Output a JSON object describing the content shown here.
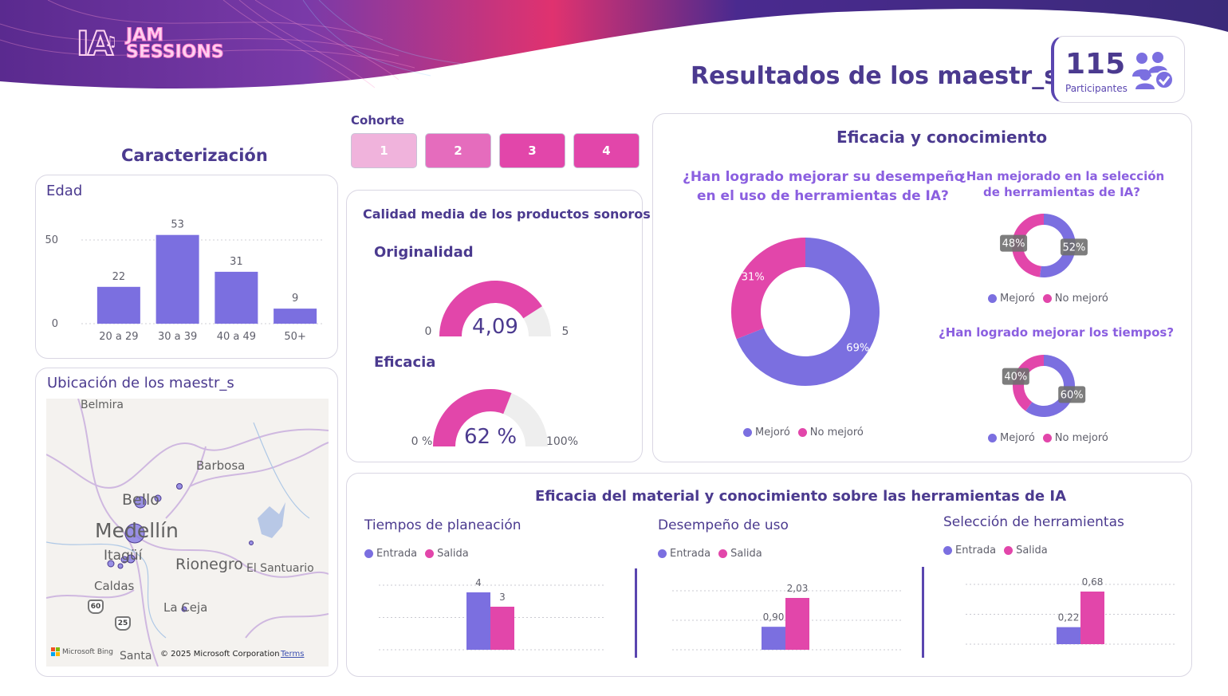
{
  "brand": {
    "logo_line1": "JAM",
    "logo_line2": "SESSIONS",
    "logo_mark": "IA"
  },
  "header": {
    "title": "Resultados de los maestr_s"
  },
  "kpi": {
    "value": "115",
    "label": "Participantes",
    "icon": "people-check-icon"
  },
  "colors": {
    "purple": "#7b6fe0",
    "pink": "#e246aa",
    "title": "#4b3a8f",
    "track": "#eeeeee"
  },
  "cohorte": {
    "label": "Cohorte",
    "buttons": [
      {
        "label": "1",
        "color": "#f0b3dc"
      },
      {
        "label": "2",
        "color": "#e56cbd"
      },
      {
        "label": "3",
        "color": "#e246aa"
      },
      {
        "label": "4",
        "color": "#e246aa"
      }
    ]
  },
  "caracterizacion": {
    "title": "Caracterización"
  },
  "edad": {
    "title": "Edad",
    "chart_data": {
      "type": "bar",
      "categories": [
        "20 a 29",
        "30 a 39",
        "40 a 49",
        "50+"
      ],
      "values": [
        22,
        53,
        31,
        9
      ],
      "yticks": [
        "0",
        "50"
      ],
      "ylim": [
        0,
        55
      ],
      "data_labels": [
        "22",
        "53",
        "31",
        "9"
      ],
      "color": "#7b6fe0"
    }
  },
  "mapa": {
    "title": "Ubicación de los maestr_s",
    "places": [
      "Belmira",
      "Barbosa",
      "Bello",
      "Medellín",
      "Itagüí",
      "Rionegro",
      "El Santuario",
      "Caldas",
      "La Ceja",
      "Santa"
    ],
    "shields": [
      "60",
      "25"
    ],
    "attribution": {
      "bing": "Microsoft Bing",
      "copyright": "© 2025 Microsoft Corporation",
      "terms": "Terms"
    }
  },
  "calidad": {
    "title": "Calidad media de los productos sonoros",
    "gauges": [
      {
        "title": "Originalidad",
        "value": 4.09,
        "min": 0,
        "max": 5,
        "value_label": "4,09",
        "min_label": "0",
        "max_label": "5"
      },
      {
        "title": "Eficacia",
        "value": 62,
        "min": 0,
        "max": 100,
        "value_label": "62 %",
        "min_label": "0 %",
        "max_label": "100%"
      }
    ]
  },
  "eficacia": {
    "title": "Eficacia y conocimiento",
    "legend": [
      "Mejoró",
      "No mejoró"
    ],
    "donuts": [
      {
        "question_lines": [
          "¿Han logrado mejorar su desempeño",
          "en el uso de herramientas de IA?"
        ],
        "chart_data": {
          "type": "pie",
          "labels": [
            "Mejoró",
            "No mejoró"
          ],
          "values": [
            69,
            31
          ],
          "data_labels": [
            "69%",
            "31%"
          ]
        }
      },
      {
        "question_lines": [
          "¿Han mejorado en la selección",
          "de herramientas de IA?"
        ],
        "chart_data": {
          "type": "pie",
          "labels": [
            "Mejoró",
            "No mejoró"
          ],
          "values": [
            52,
            48
          ],
          "data_labels": [
            "52%",
            "48%"
          ]
        }
      },
      {
        "question_lines": [
          "¿Han logrado mejorar los tiempos?"
        ],
        "chart_data": {
          "type": "pie",
          "labels": [
            "Mejoró",
            "No mejoró"
          ],
          "values": [
            60,
            40
          ],
          "data_labels": [
            "60%",
            "40%"
          ]
        }
      }
    ]
  },
  "material": {
    "title": "Eficacia del material y conocimiento sobre las herramientas de IA",
    "legend": [
      "Entrada",
      "Salida"
    ],
    "charts": [
      {
        "title": "Tiempos de planeación",
        "chart_data": {
          "type": "bar",
          "series": [
            {
              "name": "Entrada",
              "values": [
                4
              ]
            },
            {
              "name": "Salida",
              "values": [
                3
              ]
            }
          ],
          "data_labels": [
            "4",
            "3"
          ],
          "ylim": [
            0,
            4.5
          ]
        }
      },
      {
        "title": "Desempeño de uso",
        "chart_data": {
          "type": "bar",
          "series": [
            {
              "name": "Entrada",
              "values": [
                0.9
              ]
            },
            {
              "name": "Salida",
              "values": [
                2.03
              ]
            }
          ],
          "data_labels": [
            "0,90",
            "2,03"
          ],
          "ylim": [
            0,
            2.3
          ]
        }
      },
      {
        "title": "Selección de herramientas",
        "chart_data": {
          "type": "bar",
          "series": [
            {
              "name": "Entrada",
              "values": [
                0.22
              ]
            },
            {
              "name": "Salida",
              "values": [
                0.68
              ]
            }
          ],
          "data_labels": [
            "0,22",
            "0,68"
          ],
          "ylim": [
            0,
            0.8
          ]
        }
      }
    ]
  }
}
